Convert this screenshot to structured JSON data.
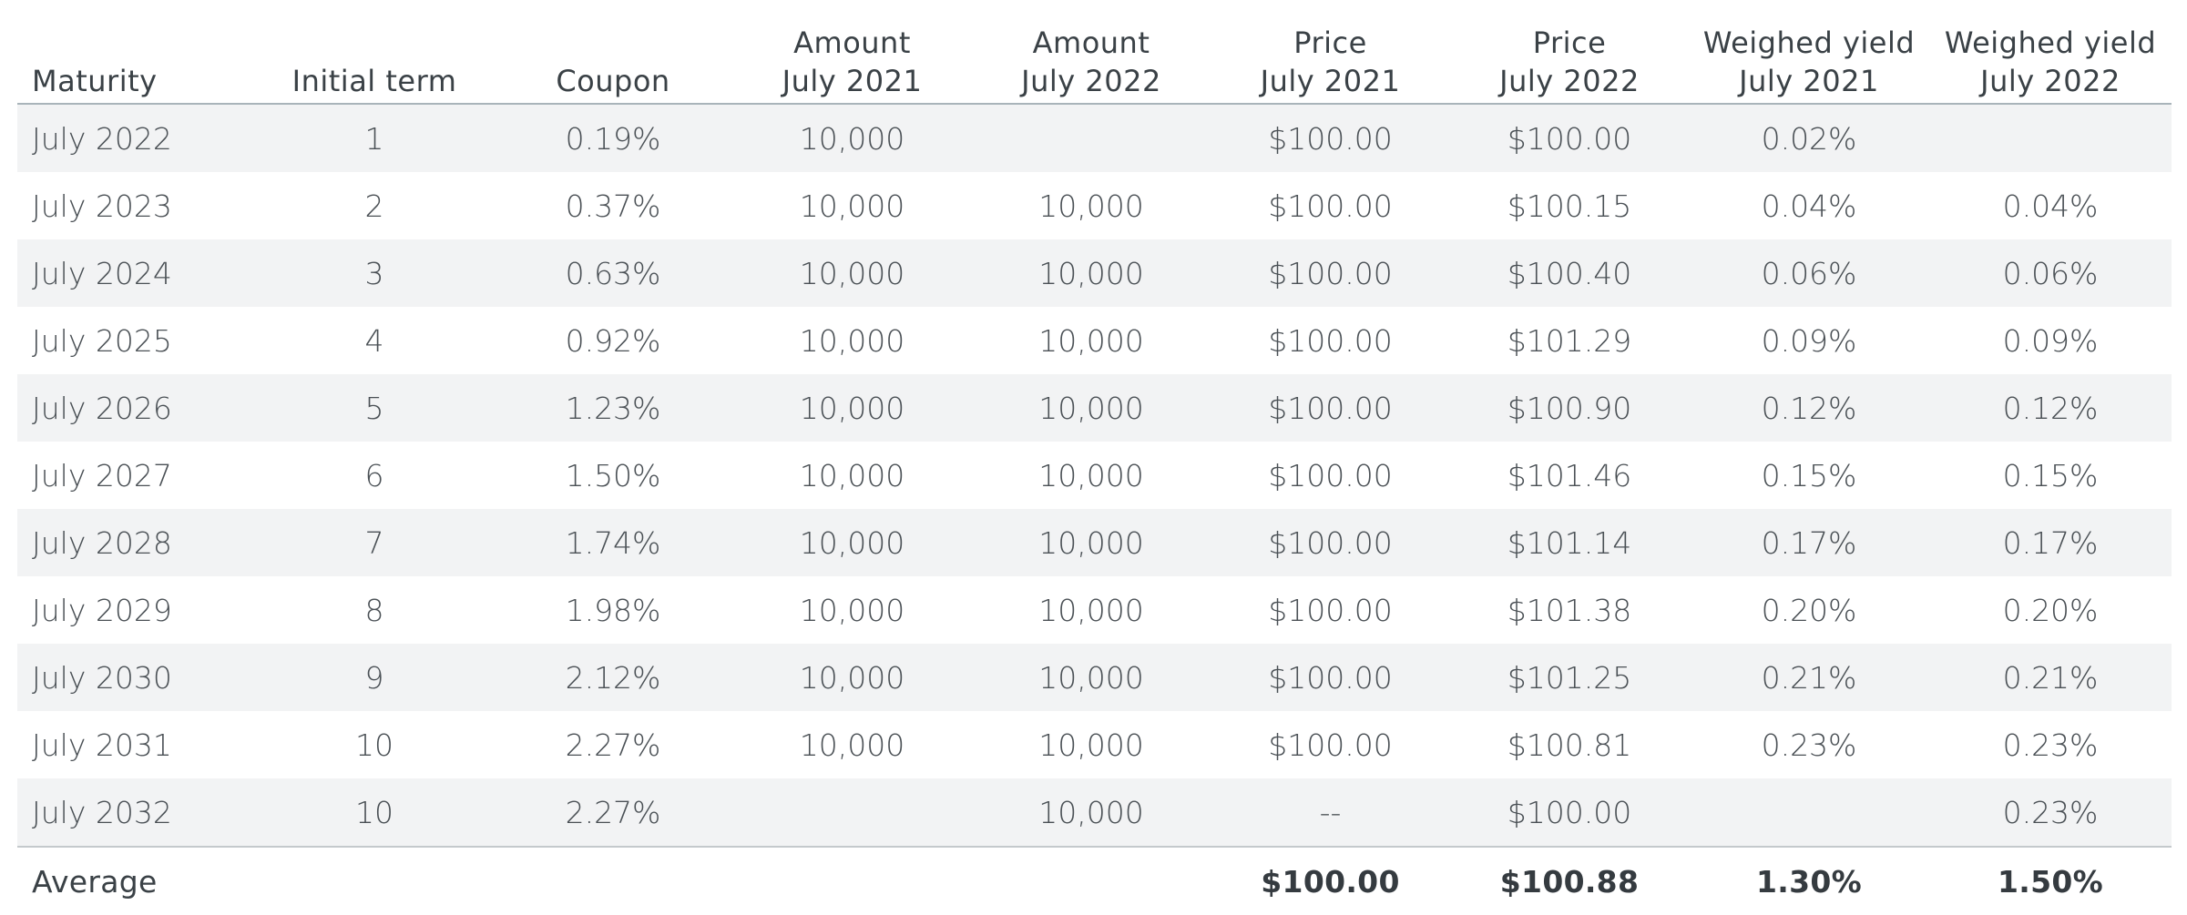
{
  "headers": [
    [
      "Maturity"
    ],
    [
      "Initial term"
    ],
    [
      "Coupon"
    ],
    [
      "Amount",
      "July 2021"
    ],
    [
      "Amount",
      "July 2022"
    ],
    [
      "Price",
      "July 2021"
    ],
    [
      "Price",
      "July 2022"
    ],
    [
      "Weighed yield",
      "July 2021"
    ],
    [
      "Weighed yield",
      "July 2022"
    ]
  ],
  "rows": [
    [
      "July 2022",
      "1",
      "0.19%",
      "10,000",
      "",
      "$100.00",
      "$100.00",
      "0.02%",
      ""
    ],
    [
      "July 2023",
      "2",
      "0.37%",
      "10,000",
      "10,000",
      "$100.00",
      "$100.15",
      "0.04%",
      "0.04%"
    ],
    [
      "July 2024",
      "3",
      "0.63%",
      "10,000",
      "10,000",
      "$100.00",
      "$100.40",
      "0.06%",
      "0.06%"
    ],
    [
      "July 2025",
      "4",
      "0.92%",
      "10,000",
      "10,000",
      "$100.00",
      "$101.29",
      "0.09%",
      "0.09%"
    ],
    [
      "July 2026",
      "5",
      "1.23%",
      "10,000",
      "10,000",
      "$100.00",
      "$100.90",
      "0.12%",
      "0.12%"
    ],
    [
      "July 2027",
      "6",
      "1.50%",
      "10,000",
      "10,000",
      "$100.00",
      "$101.46",
      "0.15%",
      "0.15%"
    ],
    [
      "July 2028",
      "7",
      "1.74%",
      "10,000",
      "10,000",
      "$100.00",
      "$101.14",
      "0.17%",
      "0.17%"
    ],
    [
      "July 2029",
      "8",
      "1.98%",
      "10,000",
      "10,000",
      "$100.00",
      "$101.38",
      "0.20%",
      "0.20%"
    ],
    [
      "July 2030",
      "9",
      "2.12%",
      "10,000",
      "10,000",
      "$100.00",
      "$101.25",
      "0.21%",
      "0.21%"
    ],
    [
      "July 2031",
      "10",
      "2.27%",
      "10,000",
      "10,000",
      "$100.00",
      "$100.81",
      "0.23%",
      "0.23%"
    ],
    [
      "July 2032",
      "10",
      "2.27%",
      "",
      "10,000",
      "--",
      "$100.00",
      "",
      "0.23%"
    ]
  ],
  "footer": [
    "Average",
    "",
    "",
    "",
    "",
    "$100.00",
    "$100.88",
    "1.30%",
    "1.50%"
  ],
  "colors": {
    "stripe": "#f2f3f4",
    "text": "#4a5055",
    "header_rule": "#a9b4ba"
  }
}
